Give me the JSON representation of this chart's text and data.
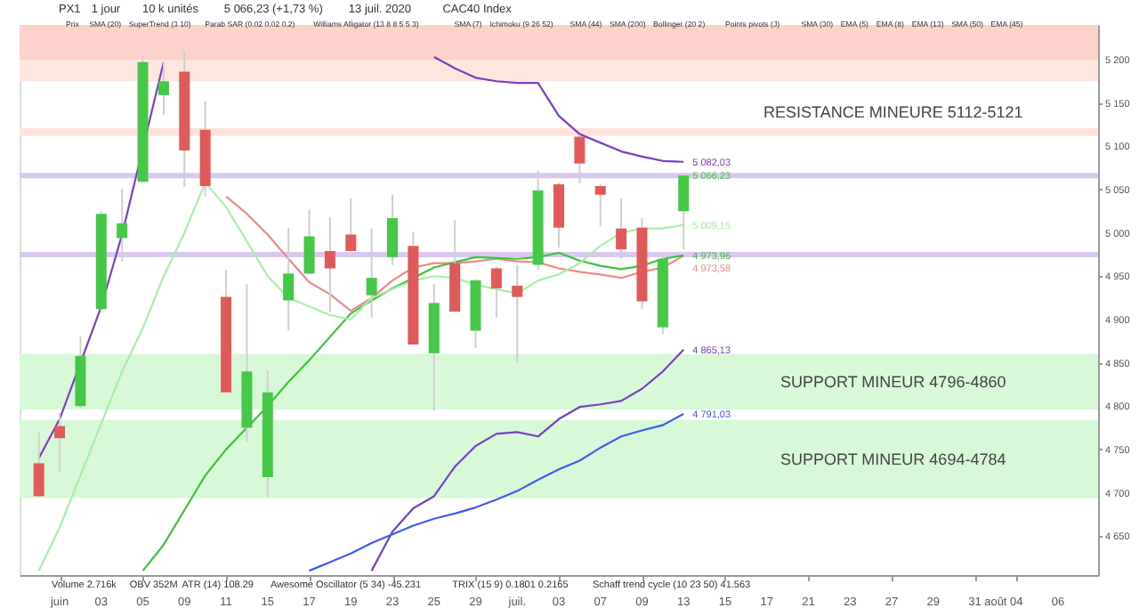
{
  "chart_data": {
    "type": "candlestick",
    "categories": [
      null,
      "juin",
      null,
      "03",
      null,
      "05",
      null,
      "09",
      null,
      "11",
      null,
      "15",
      null,
      "17",
      null,
      "19",
      null,
      "23",
      null,
      "25",
      null,
      "29",
      null,
      "juil.",
      null,
      "03",
      null,
      "07",
      null,
      "09",
      null,
      "13",
      null,
      "15",
      null,
      "17",
      null,
      "21",
      null,
      "23",
      null,
      "27",
      null,
      "29",
      null,
      "31",
      "août",
      "04",
      null,
      "06",
      null
    ],
    "ohlc": [
      [
        4734,
        4770,
        4696,
        4696
      ],
      [
        4777,
        4792,
        4724,
        4763
      ],
      [
        4800,
        4881,
        4798,
        4858
      ],
      [
        4912,
        5025,
        4910,
        5022
      ],
      [
        4994,
        5051,
        4967,
        5011
      ],
      [
        5059,
        5205,
        5059,
        5197
      ],
      [
        5159,
        5197,
        5136,
        5175
      ],
      [
        5186,
        5210,
        5053,
        5095
      ],
      [
        5119,
        5152,
        5042,
        5054
      ],
      [
        4926,
        4957,
        4816,
        4816
      ],
      [
        4775,
        4941,
        4759,
        4840
      ],
      [
        4718,
        4841,
        4695,
        4816
      ],
      [
        4922,
        5006,
        4887,
        4953
      ],
      [
        4953,
        5027,
        4953,
        4996
      ],
      [
        4979,
        5018,
        4909,
        4959
      ],
      [
        4998,
        5040,
        4979,
        4979
      ],
      [
        4928,
        5005,
        4902,
        4948
      ],
      [
        4972,
        5044,
        4963,
        5017
      ],
      [
        4985,
        5001,
        4871,
        4871
      ],
      [
        4861,
        4941,
        4795,
        4919
      ],
      [
        4965,
        5015,
        4909,
        4909
      ],
      [
        4887,
        4947,
        4867,
        4945
      ],
      [
        4959,
        4961,
        4902,
        4936
      ],
      [
        4939,
        4963,
        4850,
        4926
      ],
      [
        4963,
        5072,
        4957,
        5049
      ],
      [
        5056,
        5058,
        4983,
        5006
      ],
      [
        5111,
        5113,
        5057,
        5080
      ],
      [
        5054,
        5056,
        5008,
        5044
      ],
      [
        5005,
        5040,
        4970,
        4981
      ],
      [
        5006,
        5017,
        4912,
        4921
      ],
      [
        4891,
        4972,
        4883,
        4970
      ],
      [
        5025,
        5066.23,
        4981,
        5066.23
      ],
      null,
      null,
      null,
      null,
      null,
      null,
      null,
      null,
      null,
      null,
      null,
      null,
      null,
      null,
      null,
      null,
      null,
      null,
      null
    ],
    "colors": [
      "#e05a5a",
      "#e05a5a",
      "#45c845",
      "#45c845",
      "#45c845",
      "#45c845",
      "#45c845",
      "#e05a5a",
      "#e05a5a",
      "#e05a5a",
      "#45c845",
      "#45c845",
      "#45c845",
      "#45c845",
      "#e05a5a",
      "#e05a5a",
      "#45c845",
      "#45c845",
      "#e05a5a",
      "#45c845",
      "#e05a5a",
      "#45c845",
      "#e05a5a",
      "#e05a5a",
      "#45c845",
      "#e05a5a",
      "#e05a5a",
      "#e05a5a",
      "#e05a5a",
      "#e05a5a",
      "#45c845",
      "#45c845",
      null,
      null,
      null,
      null,
      null,
      null,
      null,
      null,
      null,
      null,
      null,
      null,
      null,
      null,
      null,
      null,
      null,
      null,
      null
    ],
    "value_labels": [
      null,
      null,
      null,
      null,
      null,
      null,
      null,
      null,
      null,
      null,
      null,
      null,
      null,
      null,
      null,
      null,
      null,
      null,
      null,
      null,
      null,
      null,
      null,
      null,
      null,
      null,
      null,
      null,
      null,
      null,
      null,
      "5 066,23",
      null,
      null,
      null,
      null,
      null,
      null,
      null,
      null,
      null,
      null,
      null,
      null,
      null,
      null,
      null,
      null,
      null,
      null,
      null
    ],
    "series": [
      {
        "type": "line",
        "color": "#7b3fc4",
        "values": [
          4740,
          4785,
          null,
          4915,
          4998,
          null,
          5197,
          null,
          null,
          null,
          null,
          null,
          null,
          null,
          null,
          null,
          null,
          null,
          null,
          5203,
          5190,
          5179,
          5175,
          5173,
          5173,
          5135,
          5114,
          5104,
          5094,
          5088,
          5083,
          5082.03,
          null,
          null,
          null,
          null,
          null,
          null,
          null,
          null,
          null,
          null,
          null,
          null,
          null,
          null,
          null,
          null,
          null,
          null,
          null
        ],
        "value_labels": [
          null,
          null,
          null,
          null,
          null,
          null,
          null,
          null,
          null,
          null,
          null,
          null,
          null,
          null,
          null,
          null,
          null,
          null,
          null,
          null,
          null,
          null,
          null,
          null,
          null,
          null,
          null,
          null,
          null,
          null,
          null,
          "5 082,03",
          null,
          null,
          null,
          null,
          null,
          null,
          null,
          null,
          null,
          null,
          null,
          null,
          null,
          null,
          null,
          null,
          null,
          null,
          null
        ]
      },
      {
        "type": "line",
        "color": "#7b3fc4",
        "values": [
          null,
          null,
          null,
          null,
          null,
          null,
          null,
          null,
          null,
          null,
          null,
          null,
          null,
          null,
          null,
          null,
          4610,
          4655,
          4682,
          4696,
          4730,
          4754,
          4768,
          4770,
          4765,
          4785,
          4799,
          4802,
          4806,
          4820,
          4840,
          4865.13,
          null,
          null,
          null,
          null,
          null,
          null,
          null,
          null,
          null,
          null,
          null,
          null,
          null,
          null,
          null,
          null,
          null,
          null,
          null
        ],
        "value_labels": [
          null,
          null,
          null,
          null,
          null,
          null,
          null,
          null,
          null,
          null,
          null,
          null,
          null,
          null,
          null,
          null,
          null,
          null,
          null,
          null,
          null,
          null,
          null,
          null,
          null,
          null,
          null,
          null,
          null,
          null,
          null,
          "4 865,13",
          null,
          null,
          null,
          null,
          null,
          null,
          null,
          null,
          null,
          null,
          null,
          null,
          null,
          null,
          null,
          null,
          null,
          null,
          null
        ]
      },
      {
        "type": "line",
        "color": "#f08a8a",
        "values": [
          null,
          null,
          null,
          null,
          null,
          null,
          null,
          null,
          null,
          5042,
          5022,
          4998,
          4970,
          4943,
          4929,
          4910,
          4925,
          4945,
          4960,
          4965,
          4965,
          4967,
          4970,
          4967,
          4966,
          4959,
          4955,
          4952,
          4948,
          4955,
          4960,
          4973.58,
          null,
          null,
          null,
          null,
          null,
          null,
          null,
          null,
          null,
          null,
          null,
          null,
          null,
          null,
          null,
          null,
          null,
          null,
          null
        ],
        "value_labels": [
          null,
          null,
          null,
          null,
          null,
          null,
          null,
          null,
          null,
          null,
          null,
          null,
          null,
          null,
          null,
          null,
          null,
          null,
          null,
          null,
          null,
          null,
          null,
          null,
          null,
          null,
          null,
          null,
          null,
          null,
          null,
          "4 973,58",
          null,
          null,
          null,
          null,
          null,
          null,
          null,
          null,
          null,
          null,
          null,
          null,
          null,
          null,
          null,
          null,
          null,
          null,
          null
        ]
      },
      {
        "type": "line",
        "color": "#3cc43c",
        "values": [
          null,
          null,
          null,
          null,
          null,
          4610,
          4640,
          4680,
          4720,
          4750,
          4775,
          4800,
          4828,
          4853,
          4880,
          4907,
          4922,
          4936,
          4948,
          4960,
          4966,
          4972,
          4971,
          4970,
          4972,
          4977,
          4968,
          4962,
          4958,
          4962,
          4970,
          4973.96,
          null,
          null,
          null,
          null,
          null,
          null,
          null,
          null,
          null,
          null,
          null,
          null,
          null,
          null,
          null,
          null,
          null,
          null,
          null
        ],
        "value_labels": [
          null,
          null,
          null,
          null,
          null,
          null,
          null,
          null,
          null,
          null,
          null,
          null,
          null,
          null,
          null,
          null,
          null,
          null,
          null,
          null,
          null,
          null,
          null,
          null,
          null,
          null,
          null,
          null,
          null,
          null,
          null,
          "4 973,96",
          null,
          null,
          null,
          null,
          null,
          null,
          null,
          null,
          null,
          null,
          null,
          null,
          null,
          null,
          null,
          null,
          null,
          null,
          null
        ]
      },
      {
        "type": "line",
        "color": "#a8eea8",
        "values": [
          4610,
          4660,
          4720,
          4780,
          4840,
          4890,
          4950,
          5000,
          5058,
          5030,
          4990,
          4950,
          4925,
          4915,
          4905,
          4900,
          4925,
          4935,
          4945,
          4950,
          4948,
          4940,
          4935,
          4930,
          4945,
          4952,
          4965,
          4985,
          5000,
          5005,
          5005,
          5009.15,
          null,
          null,
          null,
          null,
          null,
          null,
          null,
          null,
          null,
          null,
          null,
          null,
          null,
          null,
          null,
          null,
          null,
          null,
          null
        ],
        "value_labels": [
          null,
          null,
          null,
          null,
          null,
          null,
          null,
          null,
          null,
          null,
          null,
          null,
          null,
          null,
          null,
          null,
          null,
          null,
          null,
          null,
          null,
          null,
          null,
          null,
          null,
          null,
          null,
          null,
          null,
          null,
          null,
          "5 009,15",
          null,
          null,
          null,
          null,
          null,
          null,
          null,
          null,
          null,
          null,
          null,
          null,
          null,
          null,
          null,
          null,
          null,
          null,
          null
        ]
      },
      {
        "type": "line",
        "color": "#3d5cf0",
        "values": [
          null,
          null,
          null,
          null,
          null,
          null,
          null,
          null,
          null,
          null,
          null,
          null,
          null,
          4610,
          4620,
          4630,
          4642,
          4652,
          4662,
          4670,
          4676,
          4683,
          4692,
          4702,
          4715,
          4727,
          4737,
          4752,
          4765,
          4772,
          4778,
          4791.03,
          null,
          null,
          null,
          null,
          null,
          null,
          null,
          null,
          null,
          null,
          null,
          null,
          null,
          null,
          null,
          null,
          null,
          null,
          null
        ],
        "value_labels": [
          null,
          null,
          null,
          null,
          null,
          null,
          null,
          null,
          null,
          null,
          null,
          null,
          null,
          null,
          null,
          null,
          null,
          null,
          null,
          null,
          null,
          null,
          null,
          null,
          null,
          null,
          null,
          null,
          null,
          null,
          null,
          "4 791,03",
          null,
          null,
          null,
          null,
          null,
          null,
          null,
          null,
          null,
          null,
          null,
          null,
          null,
          null,
          null,
          null,
          null,
          null,
          null
        ]
      }
    ],
    "ylim": [
      4605,
      5240
    ],
    "yticks": [
      {
        "value": 5200,
        "label": "5 200"
      },
      {
        "value": 5150,
        "label": "5 150"
      },
      {
        "value": 5100,
        "label": "5 100"
      },
      {
        "value": 5050,
        "label": "5 050"
      },
      {
        "value": 5000,
        "label": "5 000"
      },
      {
        "value": 4950,
        "label": "4 950"
      },
      {
        "value": 4900,
        "label": "4 900"
      },
      {
        "value": 4850,
        "label": "4 850"
      },
      {
        "value": 4800,
        "label": "4 800"
      },
      {
        "value": 4750,
        "label": "4 750"
      },
      {
        "value": 4700,
        "label": "4 700"
      },
      {
        "value": 4650,
        "label": "4 650"
      }
    ],
    "bands": [
      {
        "axis": "y",
        "from": 5200,
        "to": 5240,
        "color": "#fcd2cb"
      },
      {
        "axis": "y",
        "from": 5175,
        "to": 5200,
        "color": "#fde6de"
      },
      {
        "axis": "y",
        "from": 5112,
        "to": 5121,
        "label": "RESISTANCE MINEURE 5112-5121",
        "color": "#fde3db"
      },
      {
        "axis": "y",
        "from": 4796,
        "to": 4860,
        "label": "SUPPORT MINEUR 4796-4860",
        "color": "#d8f9d8"
      },
      {
        "axis": "y",
        "from": 4694,
        "to": 4784,
        "label": "SUPPORT MINEUR 4694-4784",
        "color": "#d8f9d8"
      }
    ],
    "ref_lines": [
      {
        "axis": "y",
        "value": 5066,
        "color": "#d9c8f0"
      },
      {
        "axis": "y",
        "value": 4975,
        "color": "#d9c8f0"
      }
    ],
    "annotations": [
      "PX1",
      "1 jour",
      "10 k unités",
      "5 066,23 (+1,73 %)",
      "13 juil. 2020",
      "CAC40 Index",
      "Prix",
      "SMA (20)",
      "SuperTrend (3 10)",
      "Parab SAR (0.02 0.02 0.2)",
      "Williams Alligator (13 8 8 5 5 3)",
      "SMA (7)",
      "Ichimoku (9 26 52)",
      "SMA (44)",
      "SMA (200)",
      "Bollinger (20 2)",
      "Points pivots (J)",
      "SMA (30)",
      "EMA (5)",
      "EMA (8)",
      "EMA (13)",
      "SMA (50)",
      "EMA (45)",
      "Volume 2.716k",
      "OBV 352M",
      "ATR (14) 108.29",
      "Awesome Oscillator (5 34) -45.231",
      "TRIX (15 9) 0.1801 0.2165",
      "Schaff trend cycle (10 23 50) 41.563"
    ],
    "grid": false
  }
}
